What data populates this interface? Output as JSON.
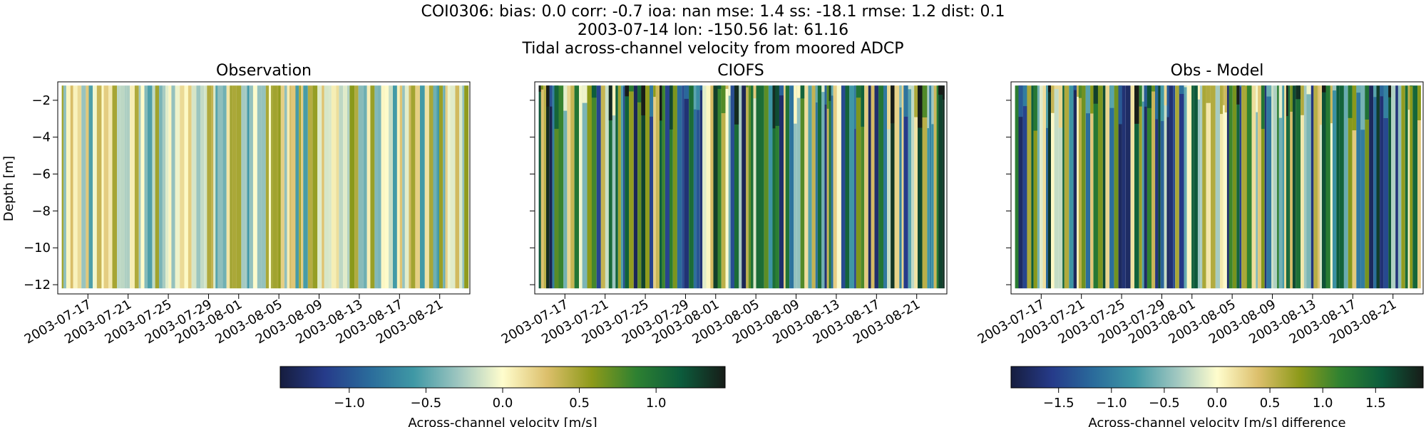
{
  "figure": {
    "suptitle_lines": [
      "COI0306: bias: 0.0  corr: -0.7  ioa: nan  mse: 1.4  ss: -18.1  rmse: 1.2  dist: 0.1",
      "2003-07-14 lon: -150.56 lat: 61.16",
      "Tidal across-channel velocity from moored ADCP"
    ]
  },
  "chart_data": [
    {
      "type": "heatmap",
      "title": "Observation",
      "ylabel": "Depth [m]",
      "xlim": [
        "2003-07-14",
        "2003-08-24"
      ],
      "ylim": [
        -12.5,
        -1.0
      ],
      "xticks": [
        "2003-07-17",
        "2003-07-21",
        "2003-07-25",
        "2003-07-29",
        "2003-08-01",
        "2003-08-05",
        "2003-08-09",
        "2003-08-13",
        "2003-08-17",
        "2003-08-21"
      ],
      "yticks": [
        -2,
        -4,
        -6,
        -8,
        -10,
        -12
      ],
      "data_depth_range": [
        -12.2,
        -1.2
      ],
      "value_range_estimate": [
        -0.6,
        0.6
      ],
      "colormap": "delta",
      "colorbar_ref": 0
    },
    {
      "type": "heatmap",
      "title": "CIOFS",
      "xlim": [
        "2003-07-14",
        "2003-08-24"
      ],
      "ylim": [
        -12.5,
        -1.0
      ],
      "xticks": [
        "2003-07-17",
        "2003-07-21",
        "2003-07-25",
        "2003-07-29",
        "2003-08-01",
        "2003-08-05",
        "2003-08-09",
        "2003-08-13",
        "2003-08-17",
        "2003-08-21"
      ],
      "yticks": [
        -2,
        -4,
        -6,
        -8,
        -10,
        -12
      ],
      "data_depth_range": [
        -12.2,
        -1.2
      ],
      "value_range_estimate": [
        -1.4,
        1.4
      ],
      "colormap": "delta",
      "colorbar_ref": 0
    },
    {
      "type": "heatmap",
      "title": "Obs - Model",
      "xlim": [
        "2003-07-14",
        "2003-08-24"
      ],
      "ylim": [
        -12.5,
        -1.0
      ],
      "xticks": [
        "2003-07-17",
        "2003-07-21",
        "2003-07-25",
        "2003-07-29",
        "2003-08-01",
        "2003-08-05",
        "2003-08-09",
        "2003-08-13",
        "2003-08-17",
        "2003-08-21"
      ],
      "yticks": [
        -2,
        -4,
        -6,
        -8,
        -10,
        -12
      ],
      "data_depth_range": [
        -12.2,
        -1.2
      ],
      "value_range_estimate": [
        -1.8,
        1.8
      ],
      "colormap": "delta",
      "colorbar_ref": 1
    }
  ],
  "colorbars": [
    {
      "label": "Across-channel velocity [m/s]",
      "range": [
        -1.45,
        1.45
      ],
      "ticks": [
        -1.0,
        -0.5,
        0.0,
        0.5,
        1.0
      ],
      "tick_labels": [
        "−1.0",
        "−0.5",
        "0.0",
        "0.5",
        "1.0"
      ]
    },
    {
      "label": "Across-channel velocity [m/s] difference",
      "range": [
        -1.95,
        1.95
      ],
      "ticks": [
        -1.5,
        -1.0,
        -0.5,
        0.0,
        0.5,
        1.0,
        1.5
      ],
      "tick_labels": [
        "−1.5",
        "−1.0",
        "−0.5",
        "0.0",
        "0.5",
        "1.0",
        "1.5"
      ]
    }
  ],
  "colormap_stops": [
    "#161d3f",
    "#263b8a",
    "#2a6b9b",
    "#3f98a5",
    "#9ec6c0",
    "#fffdcd",
    "#dcbf6b",
    "#8d9a1a",
    "#2e8131",
    "#0c5c3c",
    "#171c18"
  ]
}
